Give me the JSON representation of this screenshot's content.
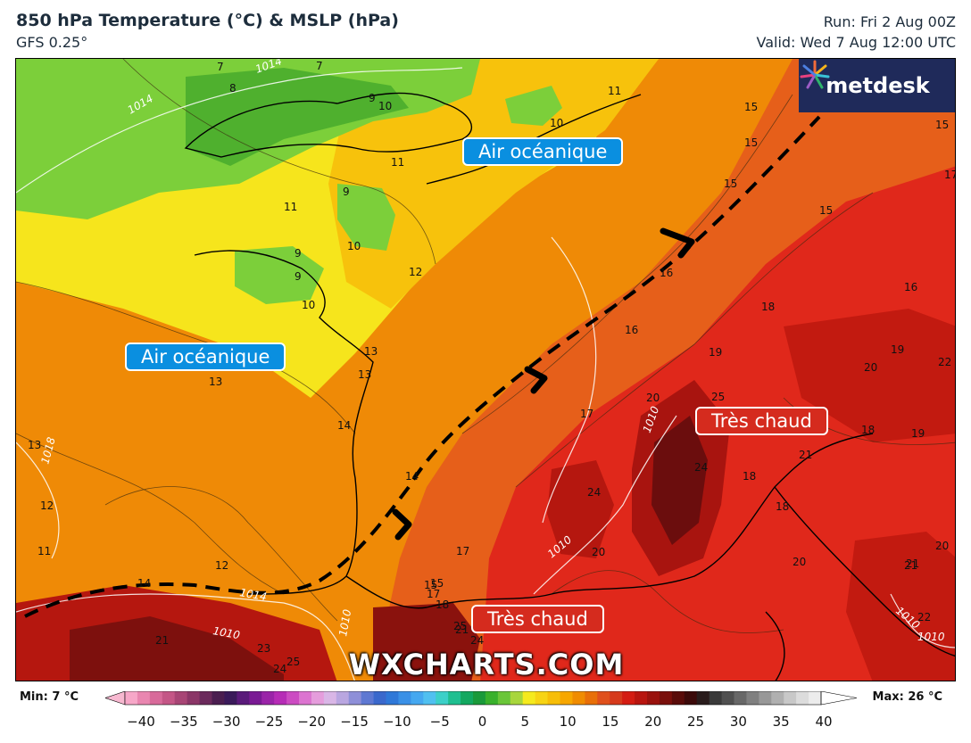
{
  "header": {
    "title": "850 hPa Temperature (°C) & MSLP (hPa)",
    "model": "GFS 0.25°",
    "run": "Run: Fri 2 Aug 00Z",
    "valid": "Valid: Wed 7 Aug 12:00 UTC"
  },
  "brand": {
    "logo_text": "metdesk",
    "watermark": "WXCHARTS.COM"
  },
  "labels": {
    "ocean_north": "Air océanique",
    "ocean_west": "Air océanique",
    "hot_east": "Très chaud",
    "hot_south": "Très chaud"
  },
  "legend": {
    "min_label": "Min: 7 °C",
    "max_label": "Max: 26 °C",
    "ticks": [
      "−40",
      "−35",
      "−30",
      "−25",
      "−20",
      "−15",
      "−10",
      "−5",
      "0",
      "5",
      "10",
      "15",
      "20",
      "25",
      "30",
      "35",
      "40"
    ]
  },
  "map_values": {
    "temps": [
      "7",
      "8",
      "7",
      "9",
      "10",
      "11",
      "10",
      "11",
      "9",
      "11",
      "10",
      "9",
      "9",
      "10",
      "12",
      "13",
      "13",
      "13",
      "14",
      "13",
      "12",
      "11",
      "12",
      "14",
      "14",
      "15",
      "15",
      "15",
      "15",
      "15",
      "16",
      "16",
      "15",
      "17",
      "16",
      "17",
      "18",
      "19",
      "19",
      "19",
      "20",
      "20",
      "22",
      "24",
      "25",
      "21",
      "22",
      "21",
      "20",
      "18",
      "18",
      "18",
      "17",
      "20",
      "21",
      "22",
      "20",
      "21",
      "24",
      "25",
      "24",
      "21",
      "23",
      "24",
      "25",
      "15",
      "17",
      "18"
    ],
    "isobars": [
      "1014",
      "1014",
      "1018",
      "1014",
      "1010",
      "1010",
      "1010",
      "1010",
      "1010",
      "1010"
    ]
  },
  "colors": {
    "cold": "#6ac639",
    "cool": "#f5ea1e",
    "mild": "#f7a700",
    "warm": "#e0442a",
    "hot": "#d41c12",
    "very_hot": "#6b0d0d"
  }
}
